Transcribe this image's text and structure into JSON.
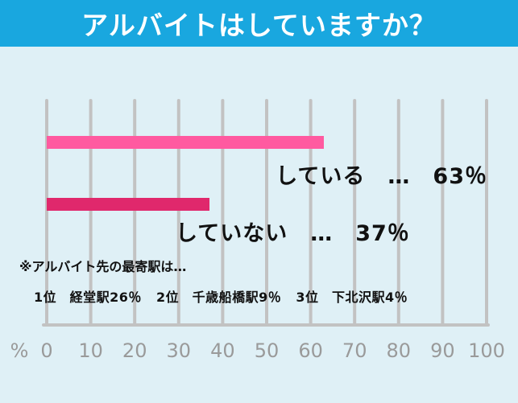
{
  "title": "アルバイトはしていますか？",
  "chart_data": {
    "type": "bar",
    "orientation": "horizontal",
    "title": "アルバイトはしていますか？",
    "xlabel": "%",
    "xlim": [
      0,
      100
    ],
    "xticks": [
      0,
      10,
      20,
      30,
      40,
      50,
      60,
      70,
      80,
      90,
      100
    ],
    "grid": true,
    "categories": [
      "している",
      "していない"
    ],
    "values": [
      63,
      37
    ],
    "bar_labels": [
      "している　…　63％",
      "していない　…　37％"
    ],
    "colors": [
      "#ff5aa0",
      "#e0286c"
    ]
  },
  "note": {
    "title": "※アルバイト先の最寄駅は…",
    "ranking": [
      "1位　経堂駅26％",
      "2位　千歳船橋駅9％",
      "3位　下北沢駅4％"
    ]
  },
  "colors": {
    "header": "#19a7df",
    "background": "#dff0f6",
    "grid": "#c2c2c2",
    "tick_text": "#9a9a9a"
  }
}
